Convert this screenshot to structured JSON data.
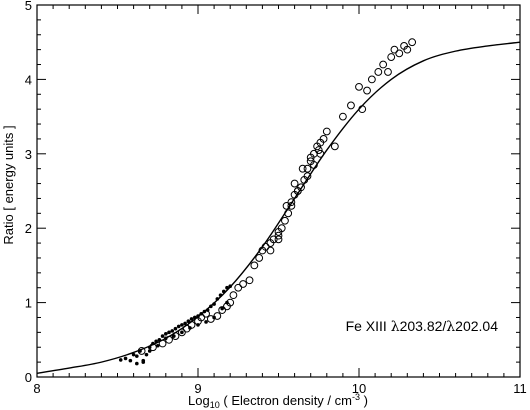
{
  "chart_data": {
    "type": "scatter",
    "title": "",
    "xlabel": {
      "prefix": "Log",
      "sub": "10",
      "mid": " ( Electron density / cm",
      "sup": "-3",
      "suffix": " )"
    },
    "ylabel": "Ratio [ energy units ]",
    "xlim": [
      8,
      11
    ],
    "ylim": [
      0,
      5
    ],
    "x_ticks": [
      8,
      9,
      10,
      11
    ],
    "y_ticks": [
      0,
      1,
      2,
      3,
      4,
      5
    ],
    "grid": false,
    "annotation": {
      "symbol": "Fe XIII ",
      "lam1": "λ",
      "v1": "203.82/",
      "lam2": "λ",
      "v2": "202.04"
    },
    "series": [
      {
        "kind": "model-curve",
        "x": [
          8.0,
          8.2,
          8.4,
          8.6,
          8.8,
          9.0,
          9.2,
          9.4,
          9.6,
          9.8,
          10.0,
          10.2,
          10.4,
          10.6,
          10.8,
          11.0
        ],
        "y": [
          0.05,
          0.12,
          0.2,
          0.33,
          0.52,
          0.81,
          1.21,
          1.75,
          2.4,
          3.05,
          3.6,
          4.0,
          4.25,
          4.38,
          4.45,
          4.5
        ]
      },
      {
        "kind": "filled-dots",
        "x": [
          8.52,
          8.55,
          8.58,
          8.6,
          8.62,
          8.64,
          8.66,
          8.68,
          8.7,
          8.72,
          8.74,
          8.76,
          8.78,
          8.8,
          8.82,
          8.84,
          8.86,
          8.88,
          8.9,
          8.92,
          8.94,
          8.96,
          8.98,
          9.0,
          9.02,
          9.04,
          9.06,
          9.08,
          9.1,
          9.12,
          9.14,
          9.16,
          9.18,
          9.2,
          8.62,
          8.66,
          8.7,
          8.75,
          8.8,
          8.85,
          8.9,
          8.95,
          9.0,
          9.05,
          9.1,
          9.15,
          9.18
        ],
        "y": [
          0.23,
          0.25,
          0.22,
          0.3,
          0.28,
          0.35,
          0.2,
          0.3,
          0.4,
          0.45,
          0.48,
          0.5,
          0.55,
          0.58,
          0.6,
          0.62,
          0.65,
          0.68,
          0.7,
          0.72,
          0.75,
          0.78,
          0.8,
          0.82,
          0.85,
          0.88,
          0.9,
          0.95,
          0.98,
          1.05,
          1.1,
          1.15,
          1.2,
          1.22,
          0.18,
          0.22,
          0.35,
          0.42,
          0.52,
          0.55,
          0.6,
          0.66,
          0.7,
          0.74,
          0.8,
          0.92,
          1.0
        ]
      },
      {
        "kind": "open-circles",
        "x": [
          8.65,
          8.72,
          8.78,
          8.82,
          8.86,
          8.9,
          8.93,
          8.96,
          9.0,
          9.02,
          9.05,
          9.08,
          9.12,
          9.15,
          9.18,
          9.2,
          9.22,
          9.25,
          9.28,
          9.32,
          9.35,
          9.38,
          9.4,
          9.42,
          9.45,
          9.47,
          9.5,
          9.52,
          9.54,
          9.56,
          9.58,
          9.6,
          9.62,
          9.64,
          9.66,
          9.68,
          9.7,
          9.72,
          9.74,
          9.76,
          9.78,
          9.8,
          9.85,
          9.9,
          9.95,
          10.0,
          10.02,
          10.05,
          10.08,
          10.12,
          10.15,
          10.18,
          10.2,
          10.22,
          10.25,
          10.28,
          10.3,
          10.33,
          9.5,
          9.55,
          9.6,
          9.65,
          9.7,
          9.75,
          9.58,
          9.62,
          9.68,
          9.72,
          9.76,
          9.45,
          9.5
        ],
        "y": [
          0.35,
          0.4,
          0.45,
          0.5,
          0.55,
          0.6,
          0.65,
          0.7,
          0.75,
          0.8,
          0.85,
          0.78,
          0.82,
          0.9,
          0.95,
          1.0,
          1.1,
          1.2,
          1.25,
          1.3,
          1.5,
          1.6,
          1.7,
          1.75,
          1.8,
          1.85,
          1.9,
          2.0,
          2.1,
          2.2,
          2.3,
          2.45,
          2.5,
          2.55,
          2.65,
          2.8,
          2.9,
          3.0,
          3.1,
          3.15,
          3.2,
          3.3,
          3.1,
          3.5,
          3.65,
          3.9,
          3.6,
          3.85,
          4.0,
          4.1,
          4.2,
          4.1,
          4.3,
          4.4,
          4.35,
          4.45,
          4.4,
          4.5,
          1.95,
          2.3,
          2.6,
          2.8,
          2.95,
          3.05,
          2.35,
          2.5,
          2.7,
          2.85,
          3.0,
          1.7,
          1.85
        ]
      }
    ]
  }
}
